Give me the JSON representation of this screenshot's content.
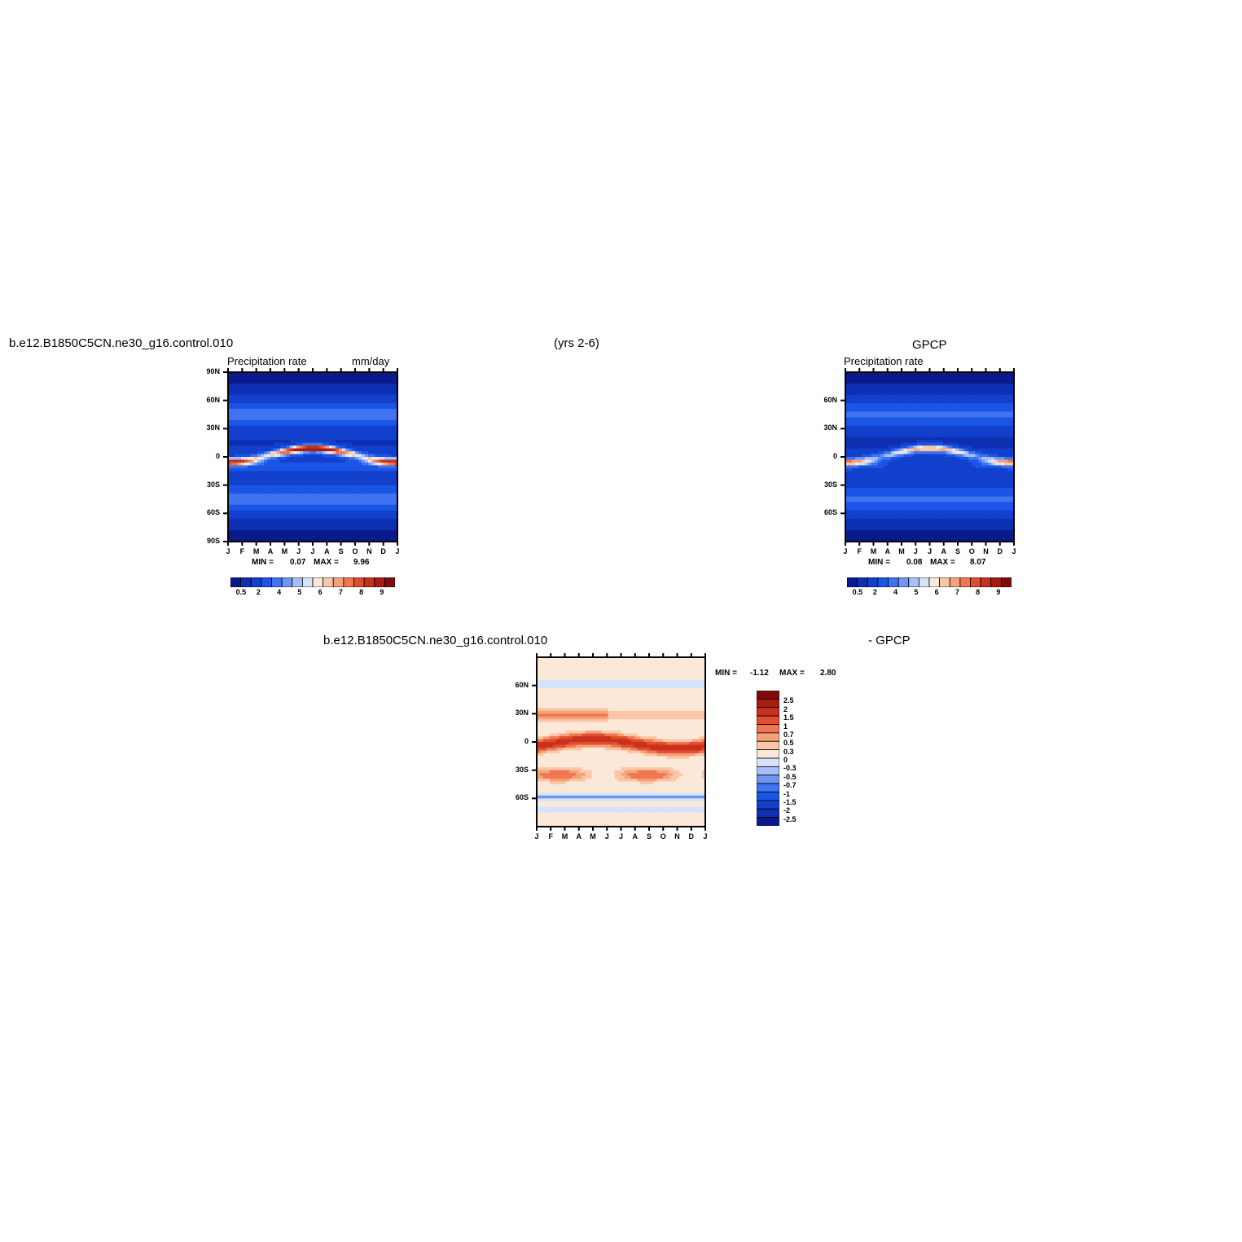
{
  "header": {
    "case_name": "b.e12.B1850C5CN.ne30_g16.control.010",
    "years": "(yrs 2-6)",
    "obs_name": "GPCP"
  },
  "diff_header": {
    "case_name": "b.e12.B1850C5CN.ne30_g16.control.010",
    "minus_obs": "- GPCP"
  },
  "colors": {
    "sequential": [
      "#0a1a8c",
      "#0d2fb0",
      "#1240cc",
      "#1a55e6",
      "#3f73f0",
      "#6e95f5",
      "#a6bff8",
      "#d6e4fb",
      "#fbe8d8",
      "#f9c7a6",
      "#f4a27a",
      "#ef7650",
      "#e14d2e",
      "#c8321c",
      "#a81c12",
      "#7d0c0a"
    ],
    "diverging": [
      "#7d0c0a",
      "#a81c12",
      "#c8321c",
      "#e14d2e",
      "#ef7650",
      "#f4a27a",
      "#f9c7a6",
      "#fbe8d8",
      "#d6e4fb",
      "#a6bff8",
      "#6e95f5",
      "#3f73f0",
      "#1a55e6",
      "#1240cc",
      "#0d2fb0",
      "#0a1a8c"
    ]
  },
  "chart_data": [
    {
      "type": "heatmap",
      "id": "model",
      "left_title": "Precipitation rate",
      "right_title": "mm/day",
      "x": [
        "J",
        "F",
        "M",
        "A",
        "M",
        "J",
        "J",
        "A",
        "S",
        "O",
        "N",
        "D",
        "J"
      ],
      "y_ticks": [
        "90N",
        "60N",
        "30N",
        "0",
        "30S",
        "60S",
        "90S"
      ],
      "stats": {
        "min_label": "MIN =",
        "min": "0.07",
        "max_label": "MAX =",
        "max": "9.96"
      },
      "colorbar_labels": [
        "0.5",
        "2",
        "4",
        "5",
        "6",
        "7",
        "8",
        "9"
      ],
      "itcz_max": 9.96
    },
    {
      "type": "heatmap",
      "id": "obs",
      "left_title": "Precipitation rate",
      "right_title": "",
      "x": [
        "J",
        "F",
        "M",
        "A",
        "M",
        "J",
        "J",
        "A",
        "S",
        "O",
        "N",
        "D",
        "J"
      ],
      "y_ticks": [
        "60N",
        "30N",
        "0",
        "30S",
        "60S"
      ],
      "stats": {
        "min_label": "MIN =",
        "min": "0.08",
        "max_label": "MAX =",
        "max": "8.07"
      },
      "colorbar_labels": [
        "0.5",
        "2",
        "4",
        "5",
        "6",
        "7",
        "8",
        "9"
      ],
      "itcz_max": 8.07
    },
    {
      "type": "heatmap",
      "id": "diff",
      "x": [
        "J",
        "F",
        "M",
        "A",
        "M",
        "J",
        "J",
        "A",
        "S",
        "O",
        "N",
        "D",
        "J"
      ],
      "y_ticks": [
        "60N",
        "30N",
        "0",
        "30S",
        "60S"
      ],
      "stats": {
        "min_label": "MIN =",
        "min": "-1.12",
        "max_label": "MAX =",
        "max": "2.80"
      },
      "colorbar_labels": [
        "2.5",
        "2",
        "1.5",
        "1",
        "0.7",
        "0.5",
        "0.3",
        "0",
        "-0.3",
        "-0.5",
        "-0.7",
        "-1",
        "-1.5",
        "-2",
        "-2.5"
      ]
    }
  ]
}
